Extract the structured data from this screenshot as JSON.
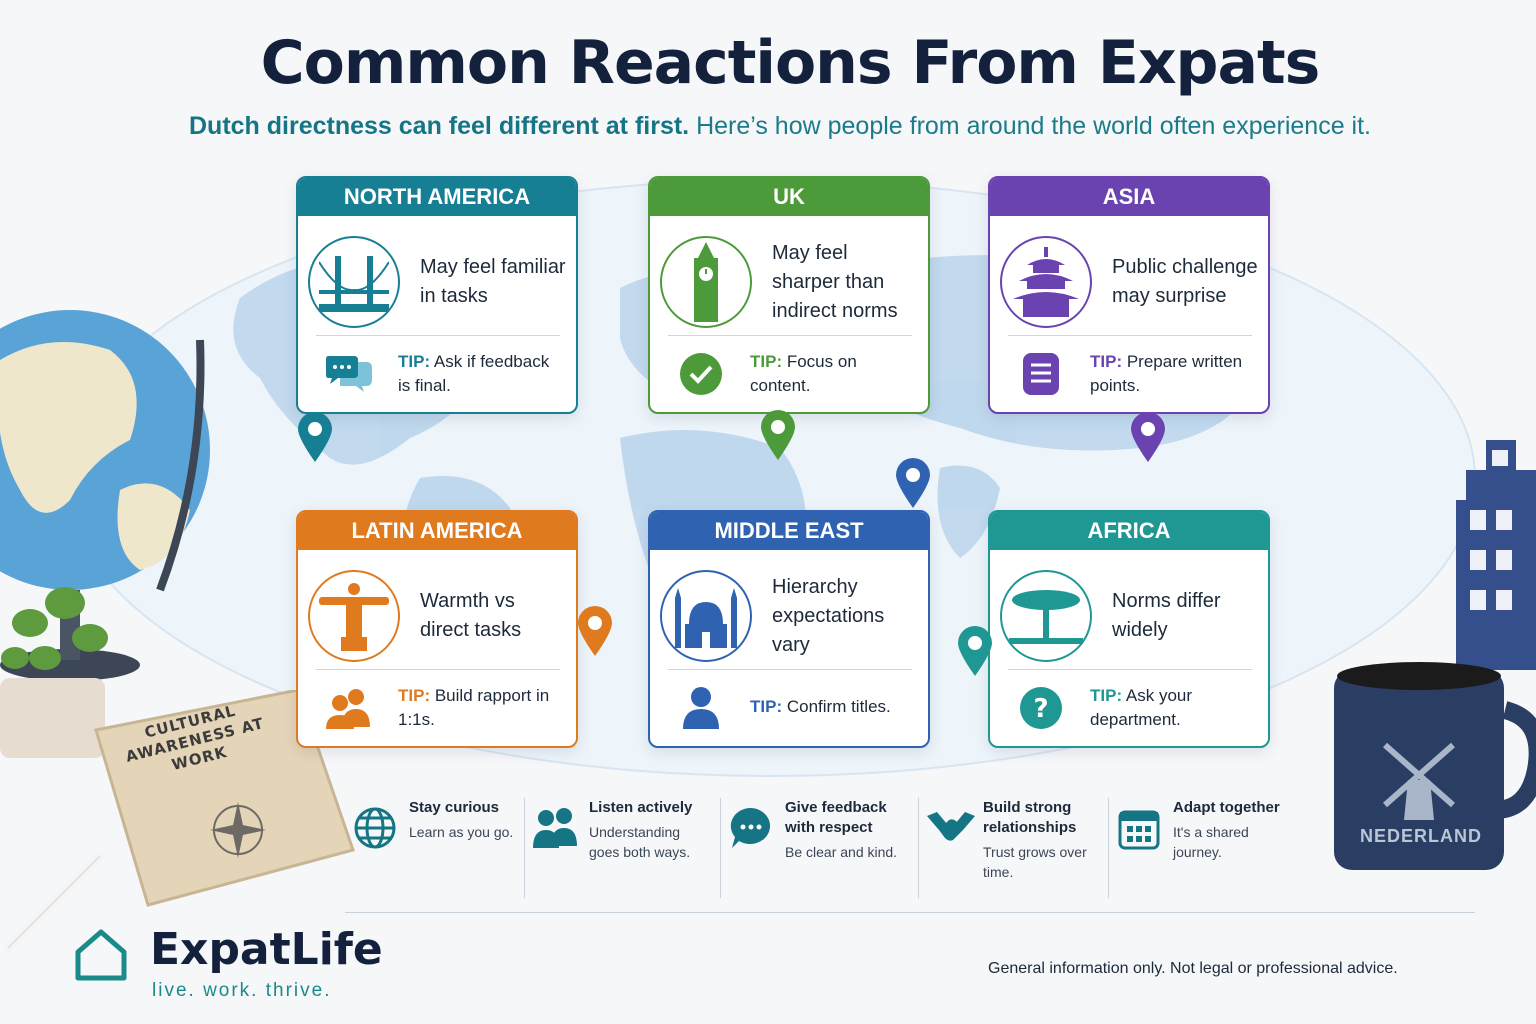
{
  "header": {
    "title": "Common Reactions From Expats",
    "subtitle_strong": "Dutch directness can feel different at first.",
    "subtitle_rest": " Here’s how people from around the world often experience it."
  },
  "cards": [
    {
      "region": "NORTH AMERICA",
      "color": "#177f93",
      "icon": "golden-gate-bridge-icon",
      "reaction": "May feel familiar in tasks",
      "tip_label": "TIP:",
      "tip_icon": "chat-bubbles-icon",
      "tip": "Ask if feedback is final."
    },
    {
      "region": "UK",
      "color": "#4d9a3a",
      "icon": "big-ben-icon",
      "reaction": "May feel sharper than indirect norms",
      "tip_label": "TIP:",
      "tip_icon": "check-circle-icon",
      "tip": "Focus on content."
    },
    {
      "region": "ASIA",
      "color": "#6a43b0",
      "icon": "pagoda-icon",
      "reaction": "Public challenge may surprise",
      "tip_label": "TIP:",
      "tip_icon": "document-icon",
      "tip": "Prepare written points."
    },
    {
      "region": "LATIN AMERICA",
      "color": "#e07a1f",
      "icon": "christ-redeemer-icon",
      "reaction": "Warmth vs direct tasks",
      "tip_label": "TIP:",
      "tip_icon": "people-icon",
      "tip": "Build rapport in 1:1s."
    },
    {
      "region": "MIDDLE EAST",
      "color": "#2f63b1",
      "icon": "mosque-icon",
      "reaction": "Hierarchy expectations vary",
      "tip_label": "TIP:",
      "tip_icon": "person-icon",
      "tip": "Confirm titles."
    },
    {
      "region": "AFRICA",
      "color": "#1f9792",
      "icon": "acacia-tree-icon",
      "reaction": "Norms differ widely",
      "tip_label": "TIP:",
      "tip_icon": "question-circle-icon",
      "tip": "Ask your department."
    }
  ],
  "strip": [
    {
      "icon": "globe-icon",
      "title": "Stay curious",
      "sub": "Learn as you go."
    },
    {
      "icon": "people-icon",
      "title": "Listen actively",
      "sub": "Understanding goes both ways."
    },
    {
      "icon": "chat-bubble-icon",
      "title": "Give feedback with respect",
      "sub": "Be clear and kind."
    },
    {
      "icon": "handshake-icon",
      "title": "Build strong relationships",
      "sub": "Trust grows over time."
    },
    {
      "icon": "calendar-icon",
      "title": "Adapt together",
      "sub": "It's a shared journey."
    }
  ],
  "book": {
    "title": "CULTURAL AWARENESS AT WORK"
  },
  "mug": {
    "label": "NEDERLAND"
  },
  "brand": {
    "name": "ExpatLife",
    "tagline": "live. work. thrive."
  },
  "footer": {
    "disclaimer": "General information only. Not legal or professional advice."
  },
  "colors": {
    "navy": "#13213d",
    "teal": "#1b7b8a",
    "map": "#b7d3ea"
  }
}
